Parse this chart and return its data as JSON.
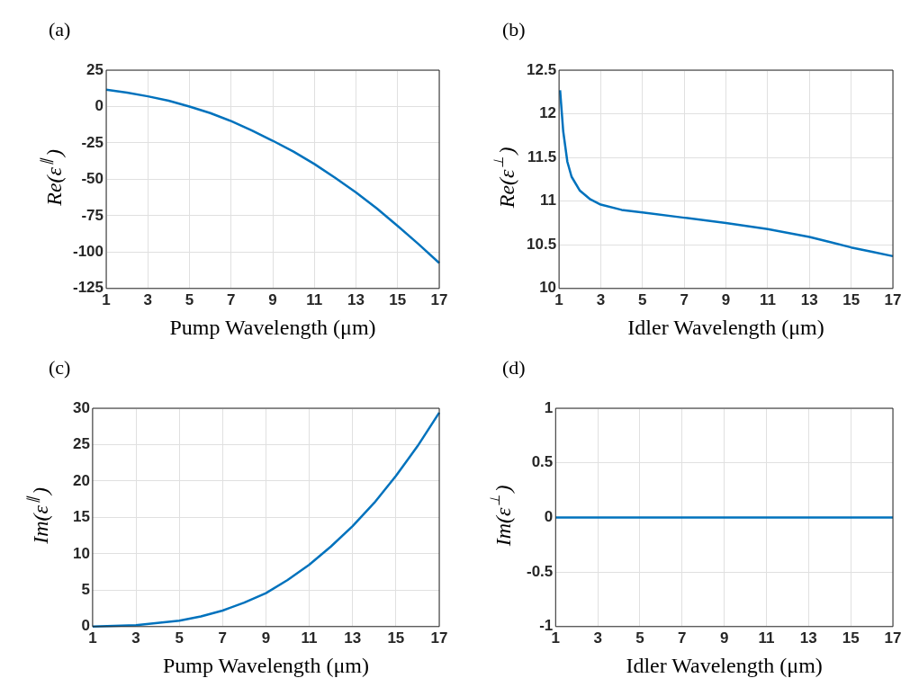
{
  "chart_data": [
    {
      "type": "line",
      "title": "(a)",
      "xlabel": "Pump Wavelength (μm)",
      "ylabel": "Re(ε$^{∥}$)",
      "xlim": [
        1,
        17
      ],
      "xticks": [
        1,
        3,
        5,
        7,
        9,
        11,
        13,
        15,
        17
      ],
      "ylim": [
        -125,
        25
      ],
      "yticks": [
        -125,
        -100,
        -75,
        -50,
        -25,
        0,
        25
      ],
      "grid": true,
      "series": [
        {
          "color": "#0072bd",
          "x": [
            1,
            2,
            3,
            4,
            5,
            6,
            7,
            8,
            9,
            10,
            11,
            12,
            13,
            14,
            15,
            16,
            17
          ],
          "values": [
            11.5,
            9.5,
            7,
            4,
            0,
            -4.5,
            -10,
            -16.5,
            -23.5,
            -31,
            -39.5,
            -49,
            -59,
            -70,
            -82,
            -94.5,
            -107.5
          ]
        }
      ]
    },
    {
      "type": "line",
      "title": "(b)",
      "xlabel": "Idler Wavelength (μm)",
      "ylabel": "Re(ε$^{⊥}$)",
      "xlim": [
        1,
        17
      ],
      "xticks": [
        1,
        3,
        5,
        7,
        9,
        11,
        13,
        15,
        17
      ],
      "ylim": [
        10,
        12.5
      ],
      "yticks": [
        10,
        10.5,
        11,
        11.5,
        12,
        12.5
      ],
      "grid": true,
      "series": [
        {
          "color": "#0072bd",
          "x": [
            1.05,
            1.2,
            1.4,
            1.6,
            2,
            2.5,
            3,
            4,
            5,
            7,
            9,
            11,
            13,
            14,
            15,
            16,
            17
          ],
          "values": [
            12.27,
            11.8,
            11.45,
            11.28,
            11.12,
            11.02,
            10.96,
            10.9,
            10.87,
            10.81,
            10.75,
            10.68,
            10.59,
            10.53,
            10.47,
            10.42,
            10.37
          ]
        }
      ]
    },
    {
      "type": "line",
      "title": "(c)",
      "xlabel": "Pump Wavelength (μm)",
      "ylabel": "Im(ε$^{∥}$)",
      "xlim": [
        1,
        17
      ],
      "xticks": [
        1,
        3,
        5,
        7,
        9,
        11,
        13,
        15,
        17
      ],
      "ylim": [
        0,
        30
      ],
      "yticks": [
        0,
        5,
        10,
        15,
        20,
        25,
        30
      ],
      "grid": true,
      "series": [
        {
          "color": "#0072bd",
          "x": [
            1,
            2,
            3,
            4,
            5,
            6,
            7,
            8,
            9,
            10,
            11,
            12,
            13,
            14,
            15,
            16,
            17
          ],
          "values": [
            0,
            0.1,
            0.2,
            0.5,
            0.8,
            1.4,
            2.2,
            3.3,
            4.6,
            6.4,
            8.5,
            11,
            13.8,
            17,
            20.7,
            24.8,
            29.4
          ]
        }
      ]
    },
    {
      "type": "line",
      "title": "(d)",
      "xlabel": "Idler Wavelength (μm)",
      "ylabel": "Im(ε$^{⊥}$)",
      "xlim": [
        1,
        17
      ],
      "xticks": [
        1,
        3,
        5,
        7,
        9,
        11,
        13,
        15,
        17
      ],
      "ylim": [
        -1,
        1
      ],
      "yticks": [
        -1,
        -0.5,
        0,
        0.5,
        1
      ],
      "grid": true,
      "series": [
        {
          "color": "#0072bd",
          "x": [
            1,
            17
          ],
          "values": [
            0,
            0
          ]
        }
      ]
    }
  ]
}
